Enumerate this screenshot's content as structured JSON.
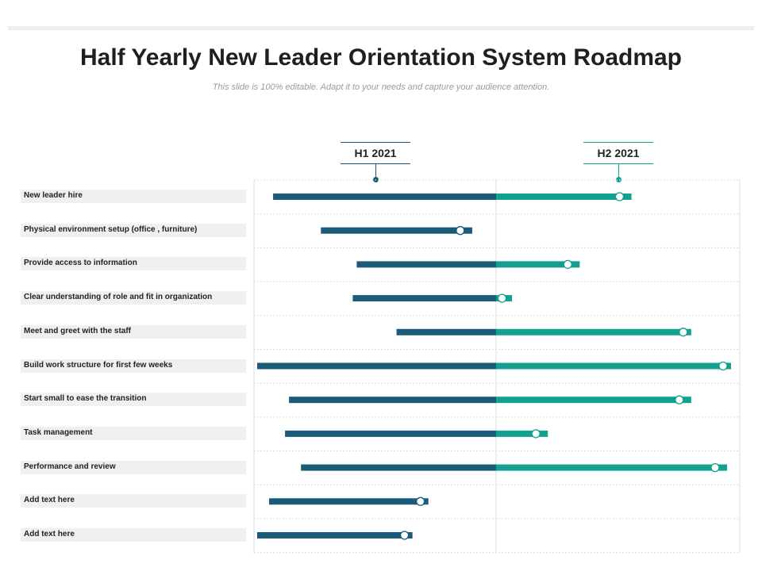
{
  "title": "Half Yearly New Leader Orientation System Roadmap",
  "subtitle": "This slide is 100% editable. Adapt it to your needs and capture your audience attention.",
  "periods": [
    {
      "label": "H1 2021",
      "color": "#1a5a7a"
    },
    {
      "label": "H2 2021",
      "color": "#12a08f"
    }
  ],
  "colors": {
    "h1": "#1a5a7a",
    "h2": "#12a08f",
    "grid": "#dcdcdc",
    "label_bg": "#f0f0f0"
  },
  "chart_data": {
    "type": "gantt",
    "timeline_range": [
      0,
      12
    ],
    "split_month": 6,
    "axis_units": "months",
    "tasks": [
      {
        "label": "New leader hire",
        "start": 0.4,
        "end": 9.4,
        "marker": 9.1
      },
      {
        "label": "Physical environment setup (office , furniture)",
        "start": 1.6,
        "end": 5.4,
        "marker": 5.1
      },
      {
        "label": "Provide access to information",
        "start": 2.5,
        "end": 8.1,
        "marker": 7.8
      },
      {
        "label": "Clear understanding of role and fit in organization",
        "start": 2.4,
        "end": 6.4,
        "marker": 6.15
      },
      {
        "label": "Meet and greet with the staff",
        "start": 3.5,
        "end": 10.9,
        "marker": 10.7
      },
      {
        "label": "Build work structure for first few weeks",
        "start": 0.0,
        "end": 11.9,
        "marker": 11.7
      },
      {
        "label": "Start small to ease the transition",
        "start": 0.8,
        "end": 10.9,
        "marker": 10.6
      },
      {
        "label": "Task management",
        "start": 0.7,
        "end": 7.3,
        "marker": 7.0
      },
      {
        "label": "Performance and review",
        "start": 1.1,
        "end": 11.8,
        "marker": 11.5
      },
      {
        "label": "Add text here",
        "start": 0.3,
        "end": 4.3,
        "marker": 4.1
      },
      {
        "label": "Add text here",
        "start": 0.0,
        "end": 3.9,
        "marker": 3.7
      }
    ]
  }
}
